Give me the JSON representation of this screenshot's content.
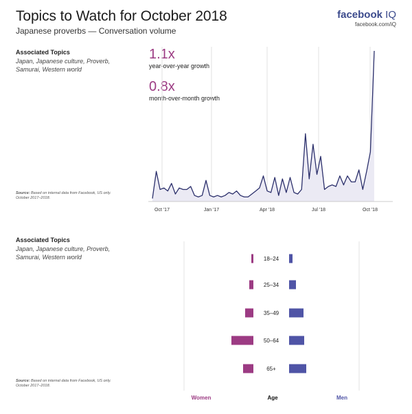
{
  "header": {
    "title": "Topics to Watch for October 2018",
    "subtitle": "Japanese proverbs — Conversation volume",
    "brand": "facebook",
    "brand_suffix": "IQ",
    "brand_url": "facebook.com/iQ"
  },
  "top_panel": {
    "associated_heading": "Associated Topics",
    "associated_topics": "Japan, Japanese culture, Proverb, Samurai, Western world",
    "source_label": "Source:",
    "source_text": "Based on internal data from Facebook, US only. October 2017–2018.",
    "kpis": [
      {
        "value": "1.1x",
        "label": "year-over-year growth"
      },
      {
        "value": "0.8x",
        "label": "month-over-month growth"
      }
    ]
  },
  "bottom_panel": {
    "associated_heading": "Associated Topics",
    "associated_topics": "Japan, Japanese culture, Proverb, Samurai, Western world",
    "source_label": "Source:",
    "source_text": "Based on internal data from Facebook, US only. October 2017–2018.",
    "footer": {
      "women": "Women",
      "age": "Age",
      "men": "Men"
    }
  },
  "colors": {
    "women": "#9c3b83",
    "men": "#4f54a6",
    "line": "#2b2f6b",
    "area": "#ebeaf4",
    "kpi": "#9c3b83"
  },
  "chart_data": [
    {
      "type": "line",
      "title": "",
      "xlabel": "",
      "ylabel": "",
      "x_tick_labels": [
        "Oct '17",
        "Jan '17",
        "Apr '18",
        "Jul '18",
        "Oct '18"
      ],
      "grid": "vertical",
      "ylim": [
        0,
        100
      ],
      "series": [
        {
          "values": [
            2,
            20,
            8,
            9,
            7,
            12,
            5,
            9,
            8,
            8,
            10,
            4,
            3,
            4,
            14,
            4,
            3,
            4,
            3,
            4,
            6,
            5,
            7,
            4,
            3,
            3,
            5,
            7,
            9,
            17,
            7,
            6,
            16,
            4,
            15,
            6,
            16,
            6,
            5,
            8,
            45,
            15,
            38,
            18,
            30,
            8,
            10,
            11,
            10,
            17,
            11,
            17,
            13,
            13,
            21,
            8,
            20,
            33,
            100
          ]
        }
      ]
    },
    {
      "type": "bar",
      "orientation": "horizontal",
      "title": "",
      "categories": [
        "18–24",
        "25–34",
        "35–49",
        "50–64",
        "65+"
      ],
      "series": [
        {
          "name": "Women",
          "values": [
            3,
            6,
            12,
            32,
            15
          ]
        },
        {
          "name": "Men",
          "values": [
            5,
            10,
            21,
            22,
            25
          ]
        }
      ]
    }
  ]
}
